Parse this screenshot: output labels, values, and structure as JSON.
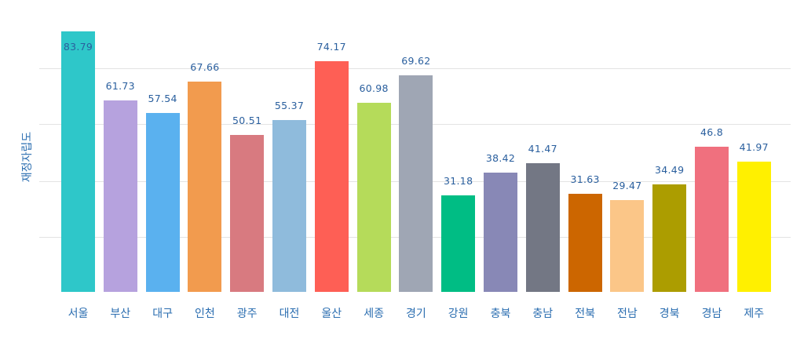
{
  "chart_data": {
    "type": "bar",
    "title": "",
    "xlabel": "",
    "ylabel": "재정자립도",
    "categories": [
      "서울",
      "부산",
      "대구",
      "인천",
      "광주",
      "대전",
      "울산",
      "세종",
      "경기",
      "강원",
      "충북",
      "충남",
      "전북",
      "전남",
      "경북",
      "경남",
      "제주"
    ],
    "values": [
      83.79,
      61.73,
      57.54,
      67.66,
      50.51,
      55.37,
      74.17,
      60.98,
      69.62,
      31.18,
      38.42,
      41.47,
      31.63,
      29.47,
      34.49,
      46.8,
      41.97
    ],
    "labels": [
      "83.79",
      "61.73",
      "57.54",
      "67.66",
      "50.51",
      "55.37",
      "74.17",
      "60.98",
      "69.62",
      "31.18",
      "38.42",
      "41.47",
      "31.63",
      "29.47",
      "34.49",
      "46.8",
      "41.97"
    ],
    "colors": [
      "#2ec7c9",
      "#b6a2de",
      "#5ab1ef",
      "#f29b4e",
      "#d87a80",
      "#8fbbdc",
      "#fe5f55",
      "#b5db5a",
      "#9fa6b4",
      "#00bd84",
      "#8888b6",
      "#737784",
      "#cc6600",
      "#fbc688",
      "#ac9d00",
      "#f0707e",
      "#fff000"
    ],
    "ylim": [
      0,
      84
    ],
    "gridlines": [
      17.7,
      35.6,
      54,
      72
    ],
    "grid": true,
    "legend": null,
    "y_tick_labels_visible": false
  },
  "chart": {
    "y_axis_title": "재정자립도"
  }
}
